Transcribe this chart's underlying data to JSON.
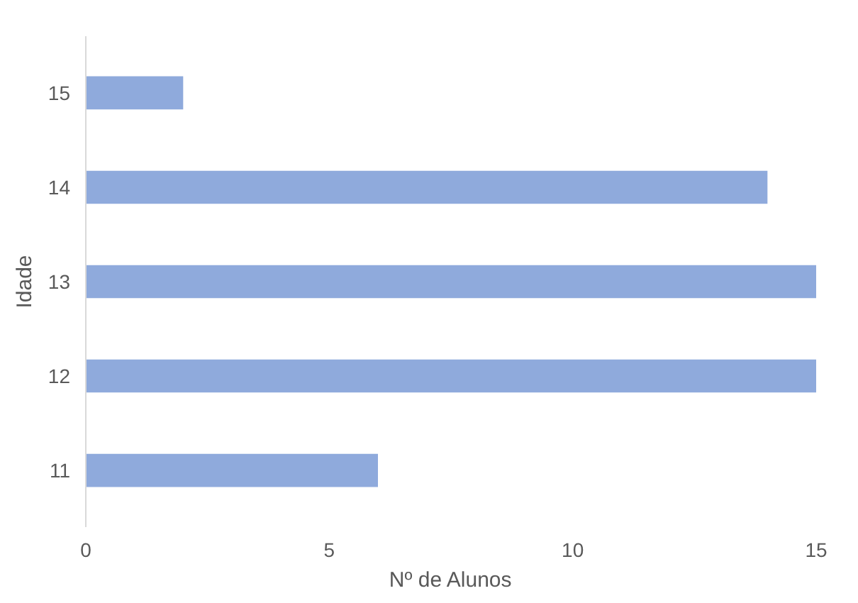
{
  "chart_data": {
    "type": "bar",
    "orientation": "horizontal",
    "xlabel": "Nº de Alunos",
    "ylabel": "Idade",
    "categories": [
      "15",
      "14",
      "13",
      "12",
      "11"
    ],
    "values": [
      2,
      14,
      15,
      15,
      6
    ],
    "color": "#8faadc",
    "xlim": [
      0,
      15
    ],
    "xticks": [
      0,
      5,
      10,
      15
    ],
    "grid": false
  }
}
